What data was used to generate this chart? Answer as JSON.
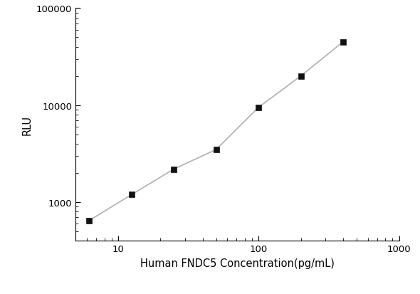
{
  "x": [
    6.25,
    12.5,
    25,
    50,
    100,
    200,
    400
  ],
  "y": [
    650,
    1200,
    2200,
    3500,
    9500,
    20000,
    45000
  ],
  "xlabel": "Human FNDC5 Concentration(pg/mL)",
  "ylabel": "RLU",
  "xlim": [
    5,
    1000
  ],
  "ylim": [
    400,
    100000
  ],
  "line_color": "#b0b0b0",
  "marker_color": "#111111",
  "marker": "s",
  "marker_size": 6,
  "line_width": 1.2,
  "background_color": "#ffffff",
  "axis_label_fontsize": 10.5,
  "tick_fontsize": 9.5,
  "yticks": [
    1000,
    10000,
    100000
  ],
  "xticks": [
    10,
    100,
    1000
  ]
}
